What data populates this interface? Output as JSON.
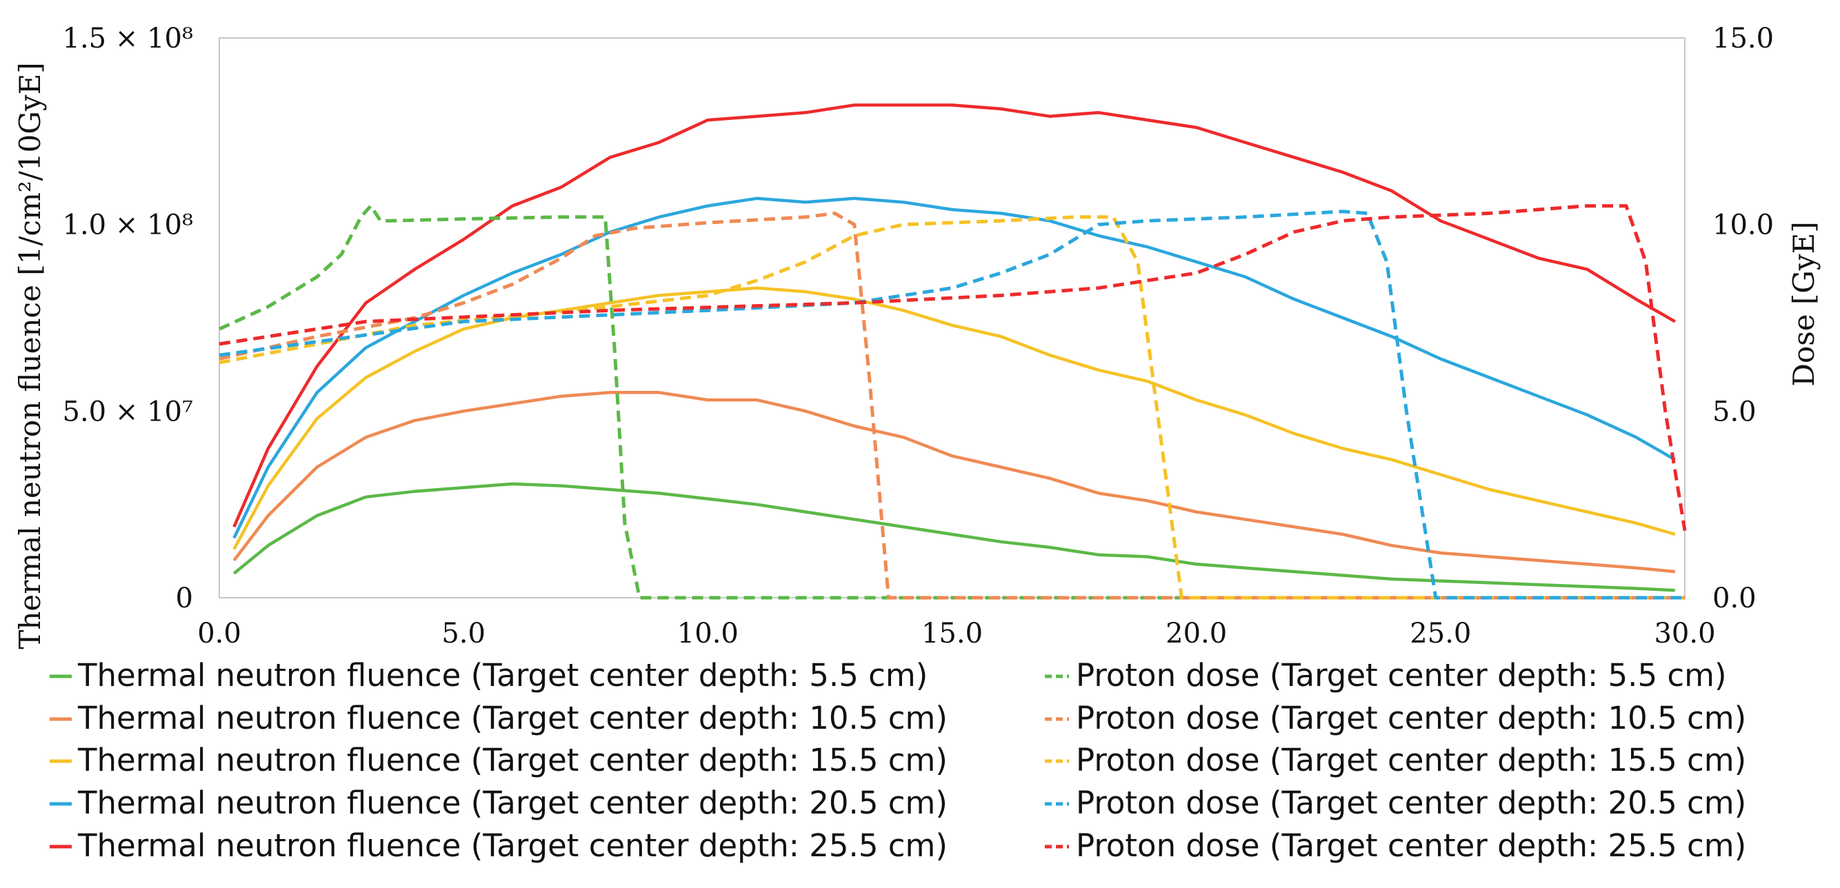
{
  "chart_data": {
    "type": "line",
    "xlim": [
      0,
      30
    ],
    "ylim_left": [
      0,
      150000000
    ],
    "ylim_right": [
      0,
      15
    ],
    "grid": false,
    "legend_position": "bottom",
    "ylabel_left": "Thermal neutron fluence [1/cm²/10GyE]",
    "ylabel_right": "Dose [GyE]",
    "x_ticks": [
      "0.0",
      "5.0",
      "10.0",
      "15.0",
      "20.0",
      "25.0",
      "30.0"
    ],
    "y_left_ticks": [
      "0",
      "5.0 × 10⁷",
      "1.0 × 10⁸",
      "1.5 × 10⁸"
    ],
    "y_right_ticks": [
      "0.0",
      "5.0",
      "10.0",
      "15.0"
    ],
    "fluence_series": [
      {
        "name": "Thermal neutron fluence (Target center depth: 5.5 cm)",
        "color": "#5cb848",
        "x": [
          0.3,
          1,
          2,
          3,
          4,
          5,
          6,
          7,
          8,
          9,
          10,
          11,
          12,
          13,
          14,
          15,
          16,
          17,
          18,
          19,
          20,
          21,
          22,
          23,
          24,
          25,
          26,
          27,
          28,
          29,
          29.8
        ],
        "y": [
          6500000,
          14000000,
          22000000,
          27000000,
          28500000,
          29500000,
          30500000,
          30000000,
          29000000,
          28000000,
          26500000,
          25000000,
          23000000,
          21000000,
          19000000,
          17000000,
          15000000,
          13500000,
          11500000,
          11000000,
          9000000,
          8000000,
          7000000,
          6000000,
          5000000,
          4500000,
          4000000,
          3500000,
          3000000,
          2500000,
          2000000
        ]
      },
      {
        "name": "Thermal neutron fluence (Target center depth: 10.5 cm)",
        "color": "#ef8a54",
        "x": [
          0.3,
          1,
          2,
          3,
          4,
          5,
          6,
          7,
          8,
          9,
          10,
          11,
          12,
          13,
          14,
          15,
          16,
          17,
          18,
          19,
          20,
          21,
          22,
          23,
          24,
          25,
          26,
          27,
          28,
          29,
          29.8
        ],
        "y": [
          10000000,
          22000000,
          35000000,
          43000000,
          47500000,
          50000000,
          52000000,
          54000000,
          55000000,
          55000000,
          53000000,
          53000000,
          50000000,
          46000000,
          43000000,
          38000000,
          35000000,
          32000000,
          28000000,
          26000000,
          23000000,
          21000000,
          19000000,
          17000000,
          14000000,
          12000000,
          11000000,
          10000000,
          9000000,
          8000000,
          7000000
        ]
      },
      {
        "name": "Thermal neutron fluence (Target center depth: 15.5 cm)",
        "color": "#f5c226",
        "x": [
          0.3,
          1,
          2,
          3,
          4,
          5,
          6,
          7,
          8,
          9,
          10,
          11,
          12,
          13,
          14,
          15,
          16,
          17,
          18,
          19,
          20,
          21,
          22,
          23,
          24,
          25,
          26,
          27,
          28,
          29,
          29.8
        ],
        "y": [
          13000000,
          30000000,
          48000000,
          59000000,
          66000000,
          72000000,
          75000000,
          77000000,
          79000000,
          81000000,
          82000000,
          83000000,
          82000000,
          80000000,
          77000000,
          73000000,
          70000000,
          65000000,
          61000000,
          58000000,
          53000000,
          49000000,
          44000000,
          40000000,
          37000000,
          33000000,
          29000000,
          26000000,
          23000000,
          20000000,
          17000000
        ]
      },
      {
        "name": "Thermal neutron fluence (Target center depth: 20.5 cm)",
        "color": "#2ba7dd",
        "x": [
          0.3,
          1,
          2,
          3,
          4,
          5,
          6,
          7,
          8,
          9,
          10,
          11,
          12,
          13,
          14,
          15,
          16,
          17,
          18,
          19,
          20,
          21,
          22,
          23,
          24,
          25,
          26,
          27,
          28,
          29,
          29.8
        ],
        "y": [
          16000000,
          35000000,
          55000000,
          67000000,
          74000000,
          81000000,
          87000000,
          92000000,
          98000000,
          102000000,
          105000000,
          107000000,
          106000000,
          107000000,
          106000000,
          104000000,
          103000000,
          101000000,
          97000000,
          94000000,
          90000000,
          86000000,
          80000000,
          75000000,
          70000000,
          64000000,
          59000000,
          54000000,
          49000000,
          43000000,
          37000000
        ]
      },
      {
        "name": "Thermal neutron fluence (Target center depth: 25.5 cm)",
        "color": "#ee2a2c",
        "x": [
          0.3,
          1,
          2,
          3,
          4,
          5,
          6,
          7,
          8,
          9,
          10,
          11,
          12,
          13,
          14,
          15,
          16,
          17,
          18,
          19,
          20,
          21,
          22,
          23,
          24,
          25,
          26,
          27,
          28,
          29,
          29.8
        ],
        "y": [
          19000000,
          40000000,
          62000000,
          79000000,
          88000000,
          96000000,
          105000000,
          110000000,
          118000000,
          122000000,
          128000000,
          129000000,
          130000000,
          132000000,
          132000000,
          132000000,
          131000000,
          129000000,
          130000000,
          128000000,
          126000000,
          122000000,
          118000000,
          114000000,
          109000000,
          101000000,
          96000000,
          91000000,
          88000000,
          80000000,
          74000000
        ]
      }
    ],
    "dose_series": [
      {
        "name": "Proton dose (Target center depth: 5.5 cm)",
        "color": "#5cb848",
        "x": [
          0,
          0.5,
          1,
          1.5,
          2,
          2.5,
          2.9,
          3.1,
          3.3,
          3.5,
          5,
          7,
          7.9,
          8.1,
          8.3,
          8.6,
          30
        ],
        "y": [
          7.2,
          7.5,
          7.8,
          8.2,
          8.6,
          9.2,
          10.2,
          10.5,
          10.1,
          10.1,
          10.15,
          10.2,
          10.2,
          6.5,
          2.0,
          0,
          0
        ]
      },
      {
        "name": "Proton dose (Target center depth: 10.5 cm)",
        "color": "#ef8a54",
        "x": [
          0,
          2,
          4,
          5,
          6,
          7,
          7.7,
          8.5,
          10,
          12,
          12.6,
          13.0,
          13.3,
          13.7,
          30
        ],
        "y": [
          6.4,
          7.0,
          7.5,
          7.9,
          8.4,
          9.1,
          9.7,
          9.9,
          10.05,
          10.2,
          10.3,
          10.0,
          6.0,
          0,
          0
        ]
      },
      {
        "name": "Proton dose (Target center depth: 15.5 cm)",
        "color": "#f5c226",
        "x": [
          0,
          4,
          8,
          10,
          11,
          12,
          13,
          14,
          16,
          17.5,
          18.3,
          18.8,
          19.2,
          19.7,
          30
        ],
        "y": [
          6.3,
          7.3,
          7.8,
          8.1,
          8.5,
          9.0,
          9.7,
          10.0,
          10.1,
          10.2,
          10.2,
          9.0,
          5.0,
          0,
          0
        ]
      },
      {
        "name": "Proton dose (Target center depth: 20.5 cm)",
        "color": "#2ba7dd",
        "x": [
          0,
          5,
          10,
          13,
          15,
          16,
          17,
          18,
          19,
          21,
          23,
          23.5,
          23.9,
          24.3,
          24.9,
          30
        ],
        "y": [
          6.5,
          7.4,
          7.7,
          7.9,
          8.3,
          8.7,
          9.2,
          10.0,
          10.1,
          10.2,
          10.35,
          10.3,
          9.0,
          5.0,
          0,
          0
        ]
      },
      {
        "name": "Proton dose (Target center depth: 25.5 cm)",
        "color": "#ee2a2c",
        "x": [
          0,
          3,
          8,
          13,
          16,
          18,
          20,
          21,
          22,
          23,
          24,
          26,
          28,
          28.8,
          29.2,
          29.6,
          30
        ],
        "y": [
          6.8,
          7.4,
          7.7,
          7.9,
          8.1,
          8.3,
          8.7,
          9.2,
          9.8,
          10.1,
          10.2,
          10.3,
          10.5,
          10.5,
          9.0,
          5.0,
          1.8
        ]
      }
    ]
  }
}
